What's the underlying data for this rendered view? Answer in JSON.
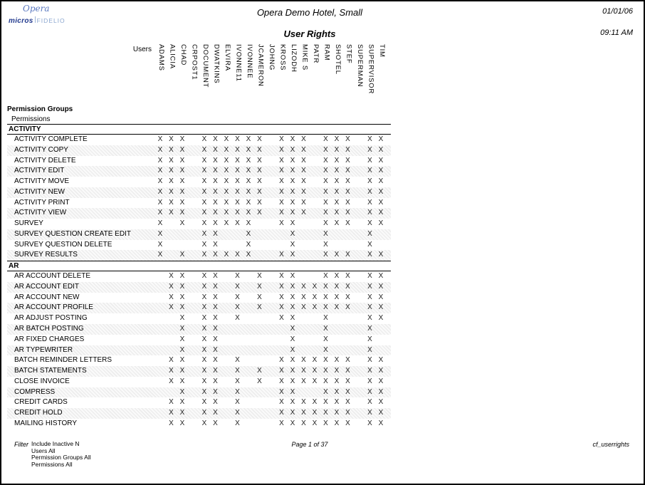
{
  "logo": {
    "opera": "Opera",
    "micros": "micros",
    "fidelio": "FIDELIO"
  },
  "header": {
    "hotel_name": "Opera Demo Hotel, Small",
    "report_title": "User Rights",
    "date": "01/01/06",
    "time": "09:11 AM"
  },
  "table": {
    "users_label": "Users",
    "mark": "X",
    "group_header": "Permission Groups",
    "sub_header": "Permissions",
    "users": [
      "ADAMS",
      "ALICIA",
      "CHAD",
      "CRPOST1",
      "DOCUMENT",
      "DWATKINS",
      "ELVIRA",
      "IVONNE11",
      "IVONNEE",
      "JCAMERON",
      "JOHNG",
      "KROSS",
      "LIZODH",
      "MIKE S",
      "PATR",
      "RAM",
      "SHOTEL",
      "STEF",
      "SUPERMAN",
      "SUPERVISOR",
      "TIM"
    ],
    "sections": [
      {
        "name": "ACTIVITY",
        "rows": [
          {
            "label": "ACTIVITY COMPLETE",
            "marks": [
              1,
              1,
              1,
              0,
              1,
              1,
              1,
              1,
              1,
              1,
              0,
              1,
              1,
              1,
              0,
              1,
              1,
              1,
              0,
              1,
              1
            ]
          },
          {
            "label": "ACTIVITY COPY",
            "marks": [
              1,
              1,
              1,
              0,
              1,
              1,
              1,
              1,
              1,
              1,
              0,
              1,
              1,
              1,
              0,
              1,
              1,
              1,
              0,
              1,
              1
            ]
          },
          {
            "label": "ACTIVITY DELETE",
            "marks": [
              1,
              1,
              1,
              0,
              1,
              1,
              1,
              1,
              1,
              1,
              0,
              1,
              1,
              1,
              0,
              1,
              1,
              1,
              0,
              1,
              1
            ]
          },
          {
            "label": "ACTIVITY EDIT",
            "marks": [
              1,
              1,
              1,
              0,
              1,
              1,
              1,
              1,
              1,
              1,
              0,
              1,
              1,
              1,
              0,
              1,
              1,
              1,
              0,
              1,
              1
            ]
          },
          {
            "label": "ACTIVITY MOVE",
            "marks": [
              1,
              1,
              1,
              0,
              1,
              1,
              1,
              1,
              1,
              1,
              0,
              1,
              1,
              1,
              0,
              1,
              1,
              1,
              0,
              1,
              1
            ]
          },
          {
            "label": "ACTIVITY NEW",
            "marks": [
              1,
              1,
              1,
              0,
              1,
              1,
              1,
              1,
              1,
              1,
              0,
              1,
              1,
              1,
              0,
              1,
              1,
              1,
              0,
              1,
              1
            ]
          },
          {
            "label": "ACTIVITY PRINT",
            "marks": [
              1,
              1,
              1,
              0,
              1,
              1,
              1,
              1,
              1,
              1,
              0,
              1,
              1,
              1,
              0,
              1,
              1,
              1,
              0,
              1,
              1
            ]
          },
          {
            "label": "ACTIVITY VIEW",
            "marks": [
              1,
              1,
              1,
              0,
              1,
              1,
              1,
              1,
              1,
              1,
              0,
              1,
              1,
              1,
              0,
              1,
              1,
              1,
              0,
              1,
              1
            ]
          },
          {
            "label": "SURVEY",
            "marks": [
              1,
              0,
              1,
              0,
              1,
              1,
              1,
              1,
              1,
              0,
              0,
              1,
              1,
              0,
              0,
              1,
              1,
              1,
              0,
              1,
              1
            ]
          },
          {
            "label": "SURVEY QUESTION CREATE EDIT",
            "marks": [
              1,
              0,
              0,
              0,
              1,
              1,
              0,
              0,
              1,
              0,
              0,
              0,
              1,
              0,
              0,
              1,
              0,
              0,
              0,
              1,
              0
            ]
          },
          {
            "label": "SURVEY QUESTION DELETE",
            "marks": [
              1,
              0,
              0,
              0,
              1,
              1,
              0,
              0,
              1,
              0,
              0,
              0,
              1,
              0,
              0,
              1,
              0,
              0,
              0,
              1,
              0
            ]
          },
          {
            "label": "SURVEY RESULTS",
            "marks": [
              1,
              0,
              1,
              0,
              1,
              1,
              1,
              1,
              1,
              0,
              0,
              1,
              1,
              0,
              0,
              1,
              1,
              1,
              0,
              1,
              1
            ]
          }
        ]
      },
      {
        "name": "AR",
        "rows": [
          {
            "label": "AR ACCOUNT DELETE",
            "marks": [
              0,
              1,
              1,
              0,
              1,
              1,
              0,
              1,
              0,
              1,
              0,
              1,
              1,
              0,
              0,
              1,
              1,
              1,
              0,
              1,
              1
            ]
          },
          {
            "label": "AR ACCOUNT EDIT",
            "marks": [
              0,
              1,
              1,
              0,
              1,
              1,
              0,
              1,
              0,
              1,
              0,
              1,
              1,
              1,
              1,
              1,
              1,
              1,
              0,
              1,
              1
            ]
          },
          {
            "label": "AR ACCOUNT NEW",
            "marks": [
              0,
              1,
              1,
              0,
              1,
              1,
              0,
              1,
              0,
              1,
              0,
              1,
              1,
              1,
              1,
              1,
              1,
              1,
              0,
              1,
              1
            ]
          },
          {
            "label": "AR ACCOUNT PROFILE",
            "marks": [
              0,
              1,
              1,
              0,
              1,
              1,
              0,
              1,
              0,
              1,
              0,
              1,
              1,
              1,
              1,
              1,
              1,
              1,
              0,
              1,
              1
            ]
          },
          {
            "label": "AR ADJUST POSTING",
            "marks": [
              0,
              0,
              1,
              0,
              1,
              1,
              0,
              1,
              0,
              0,
              0,
              1,
              1,
              0,
              0,
              1,
              0,
              0,
              0,
              1,
              1
            ]
          },
          {
            "label": "AR BATCH POSTING",
            "marks": [
              0,
              0,
              1,
              0,
              1,
              1,
              0,
              0,
              0,
              0,
              0,
              0,
              1,
              0,
              0,
              1,
              0,
              0,
              0,
              1,
              0
            ]
          },
          {
            "label": "AR FIXED CHARGES",
            "marks": [
              0,
              0,
              1,
              0,
              1,
              1,
              0,
              0,
              0,
              0,
              0,
              0,
              1,
              0,
              0,
              1,
              0,
              0,
              0,
              1,
              0
            ]
          },
          {
            "label": "AR TYPEWRITER",
            "marks": [
              0,
              0,
              1,
              0,
              1,
              1,
              0,
              0,
              0,
              0,
              0,
              0,
              1,
              0,
              0,
              1,
              0,
              0,
              0,
              1,
              0
            ]
          },
          {
            "label": "BATCH REMINDER LETTERS",
            "marks": [
              0,
              1,
              1,
              0,
              1,
              1,
              0,
              1,
              0,
              0,
              0,
              1,
              1,
              1,
              1,
              1,
              1,
              1,
              0,
              1,
              1
            ]
          },
          {
            "label": "BATCH STATEMENTS",
            "marks": [
              0,
              1,
              1,
              0,
              1,
              1,
              0,
              1,
              0,
              1,
              0,
              1,
              1,
              1,
              1,
              1,
              1,
              1,
              0,
              1,
              1
            ]
          },
          {
            "label": "CLOSE INVOICE",
            "marks": [
              0,
              1,
              1,
              0,
              1,
              1,
              0,
              1,
              0,
              1,
              0,
              1,
              1,
              1,
              1,
              1,
              1,
              1,
              0,
              1,
              1
            ]
          },
          {
            "label": "COMPRESS",
            "marks": [
              0,
              0,
              1,
              0,
              1,
              1,
              0,
              1,
              0,
              0,
              0,
              1,
              1,
              0,
              0,
              1,
              1,
              1,
              0,
              1,
              1
            ]
          },
          {
            "label": "CREDIT CARDS",
            "marks": [
              0,
              1,
              1,
              0,
              1,
              1,
              0,
              1,
              0,
              0,
              0,
              1,
              1,
              1,
              1,
              1,
              1,
              1,
              0,
              1,
              1
            ]
          },
          {
            "label": "CREDIT HOLD",
            "marks": [
              0,
              1,
              1,
              0,
              1,
              1,
              0,
              1,
              0,
              0,
              0,
              1,
              1,
              1,
              1,
              1,
              1,
              1,
              0,
              1,
              1
            ]
          },
          {
            "label": "MAILING HISTORY",
            "marks": [
              0,
              1,
              1,
              0,
              1,
              1,
              0,
              1,
              0,
              0,
              0,
              1,
              1,
              1,
              1,
              1,
              1,
              1,
              0,
              1,
              1
            ]
          }
        ]
      }
    ]
  },
  "footer": {
    "filter_label": "Filter",
    "filter_lines": [
      "Include Inactive N",
      "Users All",
      "Permission Groups All",
      "Permissions All"
    ],
    "page_text": "Page 1 of 37",
    "report_id": "cf_userrights"
  }
}
